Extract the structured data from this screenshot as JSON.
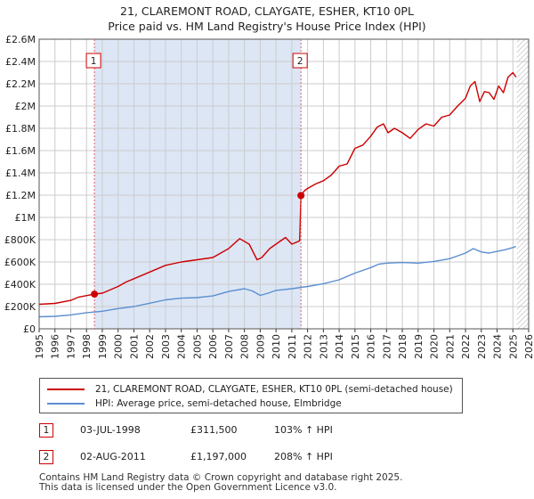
{
  "title_line1": "21, CLAREMONT ROAD, CLAYGATE, ESHER, KT10 0PL",
  "title_line2": "Price paid vs. HM Land Registry's House Price Index (HPI)",
  "colors": {
    "property": "#cc0000",
    "hpi": "#5b8fd0",
    "shade": "#dde6f5",
    "grid": "#cccccc",
    "hatch": "#999999"
  },
  "chart_data": {
    "type": "line",
    "xlim": [
      1995,
      2026
    ],
    "ylim": [
      0,
      2600000
    ],
    "ytick_values": [
      0,
      200000,
      400000,
      600000,
      800000,
      1000000,
      1200000,
      1400000,
      1600000,
      1800000,
      2000000,
      2200000,
      2400000,
      2600000
    ],
    "ytick_labels": [
      "£0",
      "£200K",
      "£400K",
      "£600K",
      "£800K",
      "£1M",
      "£1.2M",
      "£1.4M",
      "£1.6M",
      "£1.8M",
      "£2M",
      "£2.2M",
      "£2.4M",
      "£2.6M"
    ],
    "xtick_labels": [
      "1995",
      "1996",
      "1997",
      "1998",
      "1999",
      "2000",
      "2001",
      "2002",
      "2003",
      "2004",
      "2005",
      "2006",
      "2007",
      "2008",
      "2009",
      "2010",
      "2011",
      "2012",
      "2013",
      "2014",
      "2015",
      "2016",
      "2017",
      "2018",
      "2019",
      "2020",
      "2021",
      "2022",
      "2023",
      "2024",
      "2025",
      "2026"
    ],
    "shaded_region": [
      1998.5,
      2011.58
    ],
    "hatched_from": 2025.25,
    "series": [
      {
        "name": "21, CLAREMONT ROAD, CLAYGATE, ESHER, KT10 0PL (semi-detached house)",
        "x": [
          1995,
          1996,
          1997,
          1997.5,
          1998.5,
          1999,
          2000,
          2000.5,
          2001,
          2002,
          2003,
          2004,
          2005,
          2006,
          2007,
          2007.7,
          2008.3,
          2008.8,
          2009.1,
          2009.6,
          2010,
          2010.6,
          2011,
          2011.5,
          2011.58,
          2011.8,
          2012,
          2012.5,
          2013,
          2013.5,
          2014,
          2014.5,
          2015,
          2015.5,
          2016,
          2016.4,
          2016.8,
          2017.1,
          2017.5,
          2018,
          2018.5,
          2019,
          2019.5,
          2020,
          2020.5,
          2021,
          2021.5,
          2022,
          2022.3,
          2022.6,
          2022.9,
          2023.2,
          2023.5,
          2023.8,
          2024.1,
          2024.4,
          2024.7,
          2025,
          2025.2
        ],
        "values": [
          220000,
          228000,
          255000,
          285000,
          311500,
          320000,
          380000,
          420000,
          450000,
          510000,
          570000,
          600000,
          620000,
          640000,
          720000,
          810000,
          760000,
          620000,
          640000,
          720000,
          760000,
          820000,
          760000,
          790000,
          1197000,
          1240000,
          1260000,
          1300000,
          1330000,
          1380000,
          1460000,
          1480000,
          1620000,
          1650000,
          1730000,
          1810000,
          1840000,
          1760000,
          1800000,
          1760000,
          1710000,
          1790000,
          1840000,
          1820000,
          1900000,
          1920000,
          2000000,
          2070000,
          2180000,
          2220000,
          2040000,
          2130000,
          2120000,
          2060000,
          2180000,
          2120000,
          2260000,
          2300000,
          2260000
        ]
      },
      {
        "name": "HPI: Average price, semi-detached house, Elmbridge",
        "x": [
          1995,
          1996,
          1997,
          1998,
          1999,
          2000,
          2001,
          2002,
          2003,
          2004,
          2005,
          2006,
          2007,
          2008,
          2008.5,
          2009,
          2009.5,
          2010,
          2011,
          2012,
          2013,
          2014,
          2015,
          2016,
          2016.5,
          2017,
          2018,
          2019,
          2020,
          2021,
          2022,
          2022.5,
          2023,
          2023.5,
          2024,
          2024.5,
          2025,
          2025.2
        ],
        "values": [
          108000,
          112000,
          125000,
          145000,
          158000,
          182000,
          200000,
          230000,
          260000,
          275000,
          280000,
          295000,
          335000,
          360000,
          340000,
          300000,
          320000,
          345000,
          360000,
          380000,
          405000,
          440000,
          500000,
          550000,
          580000,
          590000,
          595000,
          590000,
          605000,
          630000,
          680000,
          720000,
          690000,
          680000,
          695000,
          710000,
          730000,
          740000
        ]
      }
    ],
    "annotations": [
      {
        "label": "1",
        "x": 1998.5,
        "price": 311500
      },
      {
        "label": "2",
        "x": 2011.58,
        "price": 1197000
      }
    ]
  },
  "legend": {
    "property_label": "21, CLAREMONT ROAD, CLAYGATE, ESHER, KT10 0PL (semi-detached house)",
    "hpi_label": "HPI: Average price, semi-detached house, Elmbridge"
  },
  "sales": [
    {
      "num": "1",
      "date": "03-JUL-1998",
      "price": "£311,500",
      "hpi": "103% ↑ HPI"
    },
    {
      "num": "2",
      "date": "02-AUG-2011",
      "price": "£1,197,000",
      "hpi": "208% ↑ HPI"
    }
  ],
  "footer": {
    "line1": "Contains HM Land Registry data © Crown copyright and database right 2025.",
    "line2": "This data is licensed under the Open Government Licence v3.0."
  }
}
